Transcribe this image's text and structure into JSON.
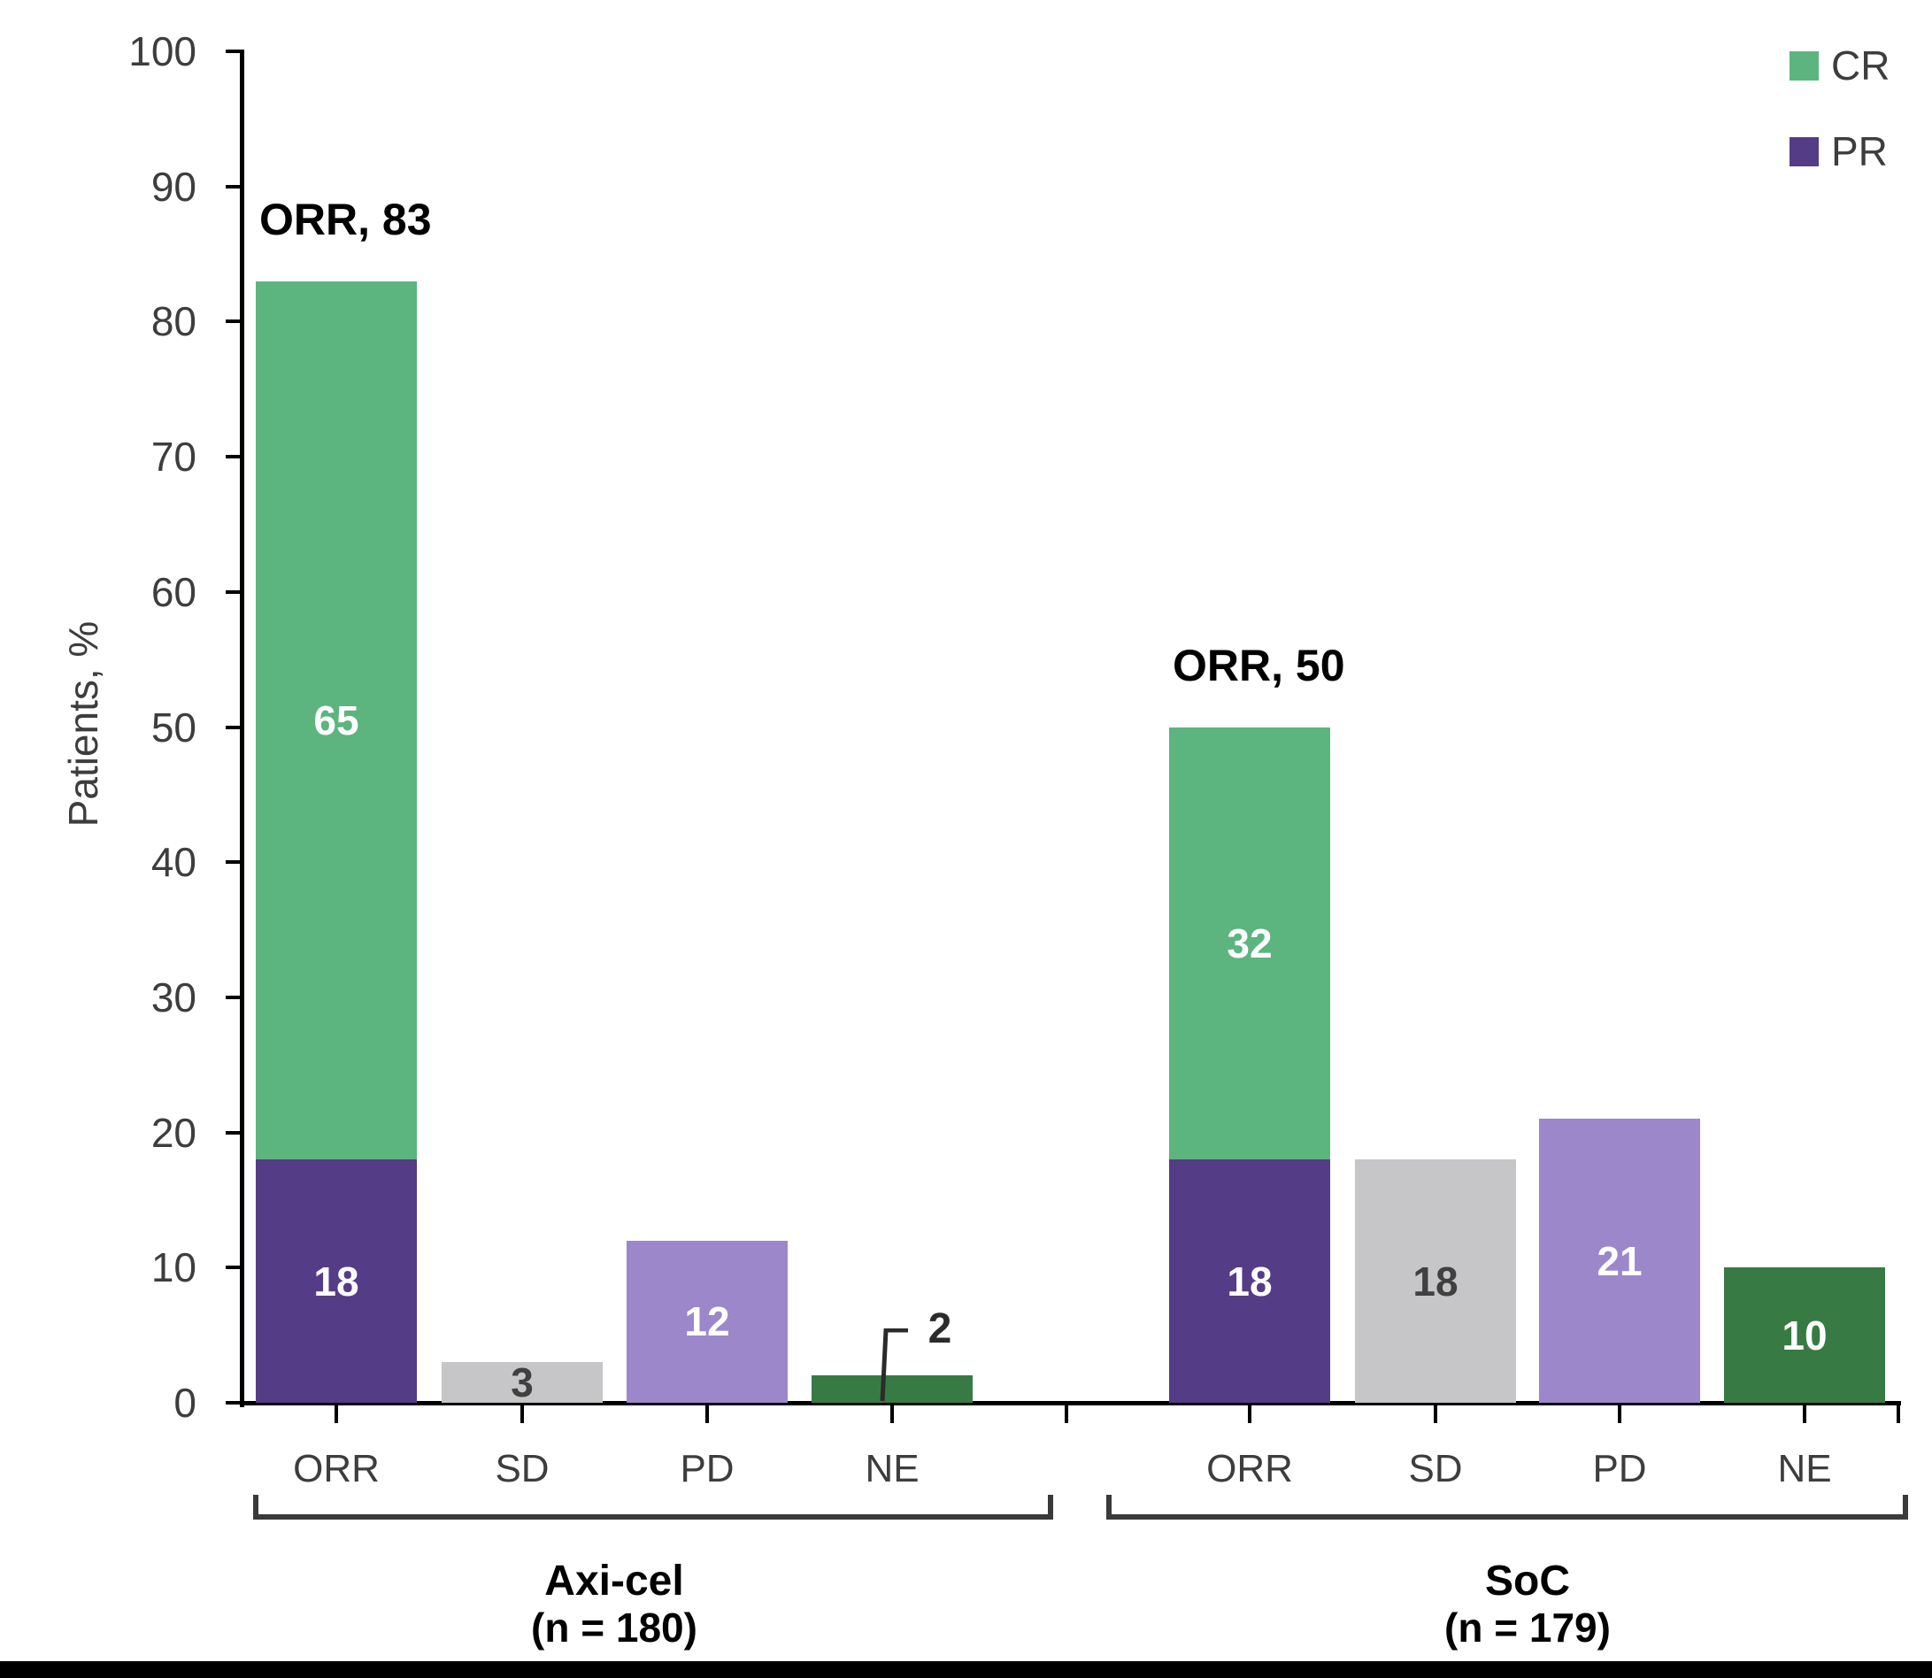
{
  "chart_data": {
    "type": "bar",
    "stacked": true,
    "ylabel": "Patients, %",
    "ylim": [
      0,
      100
    ],
    "yticks": [
      0,
      10,
      20,
      30,
      40,
      50,
      60,
      70,
      80,
      90,
      100
    ],
    "grid": false,
    "legend_position": "top-right",
    "legend": [
      {
        "label": "CR",
        "color": "#5cb47e"
      },
      {
        "label": "PR",
        "color": "#553c86"
      }
    ],
    "groups": [
      {
        "title": "Axi-cel",
        "subtitle": "(n = 180)",
        "bars": [
          {
            "category": "ORR",
            "annotation": "ORR, 83",
            "total": 83,
            "segments": [
              {
                "name": "PR",
                "value": 18,
                "color": "#553c86",
                "value_color": "#ffffff"
              },
              {
                "name": "CR",
                "value": 65,
                "color": "#5cb47e",
                "value_color": "#ffffff"
              }
            ]
          },
          {
            "category": "SD",
            "segments": [
              {
                "name": "SD",
                "value": 3,
                "color": "#c6c5c7",
                "value_color": "#404040"
              }
            ]
          },
          {
            "category": "PD",
            "segments": [
              {
                "name": "PD",
                "value": 12,
                "color": "#9b87c9",
                "value_color": "#ffffff"
              }
            ]
          },
          {
            "category": "NE",
            "callout": true,
            "segments": [
              {
                "name": "NE",
                "value": 2,
                "color": "#377a44",
                "value_color": "#2b2b2b"
              }
            ]
          }
        ]
      },
      {
        "title": "SoC",
        "subtitle": "(n = 179)",
        "bars": [
          {
            "category": "ORR",
            "annotation": "ORR, 50",
            "total": 50,
            "segments": [
              {
                "name": "PR",
                "value": 18,
                "color": "#553c86",
                "value_color": "#ffffff"
              },
              {
                "name": "CR",
                "value": 32,
                "color": "#5cb47e",
                "value_color": "#ffffff"
              }
            ]
          },
          {
            "category": "SD",
            "segments": [
              {
                "name": "SD",
                "value": 18,
                "color": "#c6c5c7",
                "value_color": "#404040"
              }
            ]
          },
          {
            "category": "PD",
            "segments": [
              {
                "name": "PD",
                "value": 21,
                "color": "#9b87c9",
                "value_color": "#ffffff"
              }
            ]
          },
          {
            "category": "NE",
            "segments": [
              {
                "name": "NE",
                "value": 10,
                "color": "#377a44",
                "value_color": "#ffffff"
              }
            ]
          }
        ]
      }
    ]
  }
}
